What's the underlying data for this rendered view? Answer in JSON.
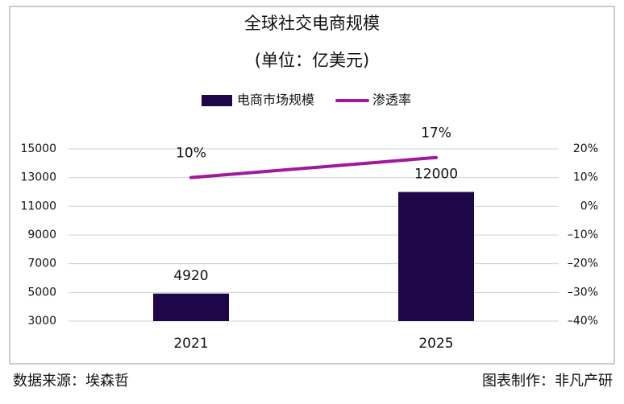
{
  "chart_data": {
    "type": "bar-line",
    "title": "全球社交电商规模",
    "subtitle": "(单位：亿美元)",
    "categories": [
      "2021",
      "2025"
    ],
    "series": [
      {
        "name": "电商市场规模",
        "type": "bar",
        "color": "#1e0748",
        "values": [
          4920,
          12000
        ]
      },
      {
        "name": "渗透率",
        "type": "line",
        "axis": "y2",
        "color": "#a0189c",
        "values": [
          10,
          17
        ],
        "value_labels": [
          "10%",
          "17%"
        ]
      }
    ],
    "ylim": [
      3000,
      15000
    ],
    "yticks": [
      3000,
      5000,
      7000,
      9000,
      11000,
      13000,
      15000
    ],
    "y2lim": [
      -40,
      20
    ],
    "y2ticks": [
      {
        "value": -40,
        "label": "–40%"
      },
      {
        "value": -30,
        "label": "–30%"
      },
      {
        "value": -20,
        "label": "–20%"
      },
      {
        "value": -10,
        "label": "–10%"
      },
      {
        "value": 0,
        "label": "0%"
      },
      {
        "value": 10,
        "label": "10%"
      },
      {
        "value": 20,
        "label": "20%"
      }
    ],
    "grid": true,
    "legend": "top",
    "source": "数据来源：埃森哲",
    "credit": "图表制作：非凡产研"
  }
}
